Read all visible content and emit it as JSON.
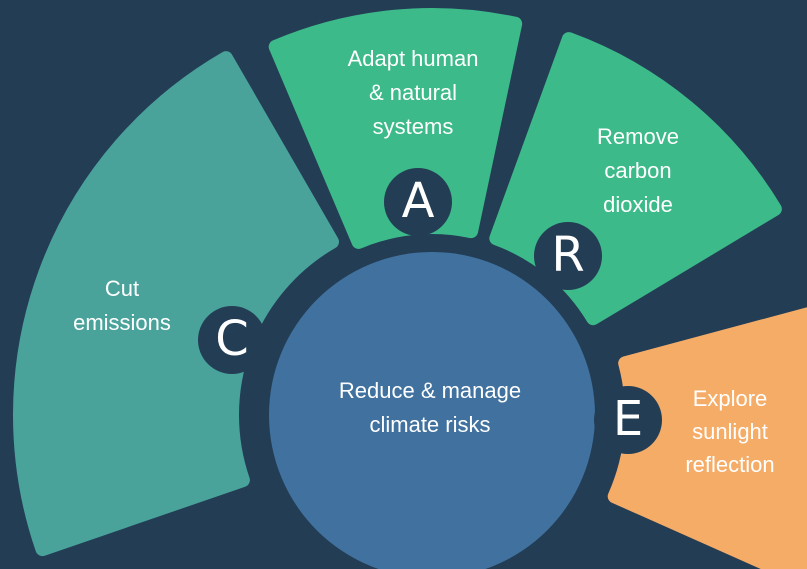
{
  "center": {
    "lines": [
      "Reduce & manage",
      "climate risks"
    ]
  },
  "segments": [
    {
      "letter": "C",
      "lines": [
        "Cut",
        "emissions"
      ]
    },
    {
      "letter": "A",
      "lines": [
        "Adapt  human",
        "& natural",
        "systems"
      ]
    },
    {
      "letter": "R",
      "lines": [
        "Remove",
        "carbon",
        "dioxide"
      ]
    },
    {
      "letter": "E",
      "lines": [
        "Explore",
        "sunlight",
        "reflection"
      ]
    }
  ]
}
